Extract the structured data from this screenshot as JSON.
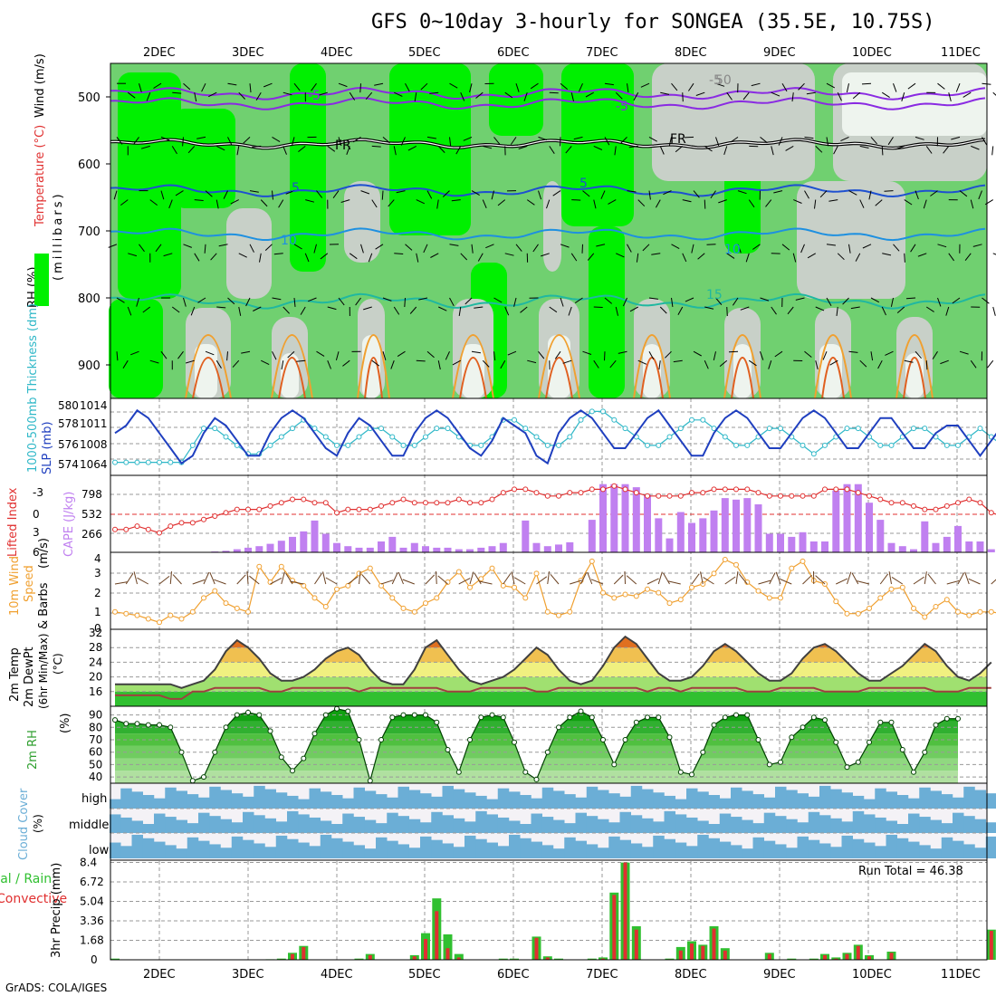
{
  "title": "GFS 0~10day 3-hourly for SONGEA (35.5E, 10.75S)",
  "footer": "GrADS: COLA/IGES",
  "dates": [
    "2DEC",
    "3DEC",
    "4DEC",
    "5DEC",
    "6DEC",
    "7DEC",
    "8DEC",
    "9DEC",
    "10DEC",
    "11DEC"
  ],
  "colors": {
    "rh_green": "#00f000",
    "rh_mid": "#70d070",
    "rh_gray": "#c8d0c8",
    "cloud": "#6baed6",
    "slp": "#1f3fbf",
    "thick": "#30b8c8",
    "li": "#e03030",
    "cape": "#c080f0",
    "wind": "#f0a030",
    "precip_total": "#30c030",
    "precip_conv": "#e03030"
  },
  "panels": {
    "upper": {
      "ylabels": [
        "Wind (m/s)",
        "Temperature (°C)",
        "(millibars)",
        "RH (%)"
      ],
      "yticks": [
        500,
        600,
        700,
        800,
        900
      ],
      "contour_labels": [
        "-5",
        "-5",
        "FR",
        "FR",
        "-5",
        "5",
        "5",
        "10",
        "10",
        "15",
        "50"
      ]
    },
    "slp": {
      "ylabel_left": "1000-500mb Thickness (dm)",
      "ylabel_right": "SLP (mb)",
      "ticks_left": [
        "580",
        "578",
        "576",
        "574"
      ],
      "ticks_right": [
        "1014",
        "1011",
        "1008",
        "1064"
      ]
    },
    "cape": {
      "ylabel_left": "Lifted Index",
      "ylabel_right": "CAPE (J/kg)",
      "ticks_left": [
        "-3",
        "0",
        "3",
        "6"
      ],
      "ticks_right": [
        "798",
        "532",
        "266"
      ]
    },
    "wind10m": {
      "ylabel": "10m Wind Speed & Barbs (m/s)",
      "ylabel_parts": [
        "10m Wind",
        "Speed",
        "& Barbs",
        "(m/s)"
      ],
      "ticks": [
        "4",
        "3",
        "2",
        "1",
        "0"
      ]
    },
    "temp2m": {
      "ylabel_parts": [
        "2m Temp",
        "2m DewPt",
        "(6hr Min/Max)",
        "(°C)"
      ],
      "ticks": [
        "32",
        "28",
        "24",
        "20",
        "16"
      ]
    },
    "rh2m": {
      "ylabel_parts": [
        "2m RH",
        "(%)"
      ],
      "ticks": [
        "90",
        "80",
        "70",
        "60",
        "50",
        "40"
      ]
    },
    "cloud": {
      "ylabel_parts": [
        "Cloud Cover",
        "(%)"
      ],
      "levels": [
        "high",
        "middle",
        "low"
      ]
    },
    "precip": {
      "ylabel_parts": [
        "3hr Precip (mm)"
      ],
      "legend_total": "Total / Rain",
      "legend_conv": "Convective",
      "ticks": [
        "8.4",
        "6.72",
        "5.04",
        "3.36",
        "1.68",
        "0"
      ],
      "run_total": "Run Total = 46.38"
    }
  },
  "chart_data": [
    {
      "type": "line",
      "title": "SLP and 1000-500mb thickness",
      "series": [
        {
          "name": "SLP (mb)",
          "values": [
            1011,
            1012,
            1014,
            1013,
            1011,
            1009,
            1007,
            1008,
            1011,
            1013,
            1012,
            1010,
            1008,
            1008,
            1011,
            1013,
            1014,
            1013,
            1011,
            1009,
            1008,
            1011,
            1013,
            1012,
            1010,
            1008,
            1008,
            1011,
            1013,
            1014,
            1013,
            1011,
            1009,
            1008,
            1010,
            1013,
            1012,
            1011,
            1008,
            1007,
            1011,
            1013,
            1014,
            1013,
            1011,
            1009,
            1009,
            1011,
            1013,
            1014,
            1012,
            1010,
            1008,
            1008,
            1011,
            1013,
            1014,
            1013,
            1011,
            1009,
            1009,
            1011,
            1013,
            1014,
            1013,
            1011,
            1009,
            1009,
            1011,
            1013,
            1013,
            1011,
            1009,
            1009,
            1011,
            1012,
            1012,
            1010,
            1008,
            1010,
            1012
          ]
        },
        {
          "name": "Thickness (dm)",
          "values": [
            574,
            574,
            574,
            574,
            574,
            574,
            574,
            576,
            578,
            578,
            577,
            576,
            575,
            575,
            576,
            577,
            578,
            579,
            578,
            577,
            576,
            576,
            577,
            578,
            578,
            577,
            576,
            576,
            577,
            578,
            578,
            577,
            576,
            576,
            577,
            579,
            579,
            578,
            577,
            576,
            576,
            577,
            579,
            580,
            580,
            579,
            578,
            577,
            576,
            576,
            577,
            578,
            579,
            579,
            578,
            577,
            576,
            576,
            577,
            578,
            578,
            577,
            576,
            575,
            576,
            577,
            578,
            578,
            577,
            576,
            576,
            577,
            578,
            578,
            577,
            576,
            576,
            577,
            578,
            577,
            576
          ]
        }
      ]
    },
    {
      "type": "bar",
      "title": "CAPE and Lifted Index",
      "series": [
        {
          "name": "CAPE (J/kg)",
          "values": [
            0,
            0,
            0,
            0,
            0,
            0,
            0,
            0,
            0,
            10,
            20,
            40,
            60,
            80,
            110,
            150,
            200,
            270,
            410,
            240,
            120,
            80,
            60,
            60,
            140,
            200,
            60,
            120,
            80,
            60,
            60,
            40,
            40,
            60,
            80,
            120,
            0,
            410,
            120,
            80,
            100,
            130,
            0,
            420,
            880,
            880,
            880,
            840,
            740,
            440,
            180,
            520,
            380,
            440,
            540,
            700,
            680,
            700,
            620,
            240,
            240,
            200,
            260,
            140,
            140,
            800,
            880,
            880,
            640,
            420,
            120,
            80,
            40,
            400,
            120,
            200,
            340,
            140,
            140,
            40,
            0
          ]
        },
        {
          "name": "Lifted Index",
          "values": [
            3,
            3,
            2.5,
            3,
            3.5,
            2.5,
            2,
            2,
            1.5,
            1,
            0.5,
            0,
            0,
            0,
            -0.5,
            -1,
            -1.5,
            -1.5,
            -1,
            -1,
            0.5,
            0,
            0,
            0,
            -0.5,
            -1,
            -1.5,
            -1,
            -1,
            -1,
            -1,
            -1.5,
            -1,
            -1,
            -1.5,
            -2.5,
            -3,
            -3,
            -2.5,
            -2,
            -2,
            -2.5,
            -2.5,
            -3,
            -3,
            -3.5,
            -3,
            -2.5,
            -2,
            -2,
            -2,
            -2,
            -2.5,
            -2.5,
            -3,
            -3,
            -3,
            -3,
            -2.5,
            -2,
            -2,
            -2,
            -2,
            -2,
            -3,
            -3,
            -3,
            -2.5,
            -2,
            -1.5,
            -1,
            -1,
            -0.5,
            0,
            0,
            -0.5,
            -1,
            -1.5,
            -1,
            0.5,
            1,
            -1.5
          ]
        }
      ]
    },
    {
      "type": "line",
      "title": "10m Wind Speed",
      "series": [
        {
          "name": "Speed (m/s)",
          "values": [
            1,
            0.9,
            0.8,
            0.6,
            0.4,
            0.8,
            0.6,
            1,
            1.8,
            2.2,
            1.5,
            1.2,
            1,
            3.6,
            2.7,
            3.6,
            2.8,
            2.5,
            1.8,
            1.3,
            2.3,
            2.5,
            3.2,
            3.5,
            2.5,
            1.8,
            1.2,
            1,
            1.5,
            1.8,
            2.7,
            3.3,
            2.4,
            2.9,
            3.5,
            2.5,
            2.4,
            1.8,
            3.2,
            1,
            0.8,
            1,
            2.8,
            3.9,
            2.1,
            1.8,
            2,
            1.9,
            2.3,
            2.1,
            1.5,
            1.7,
            2.4,
            2.6,
            3.2,
            4,
            3.7,
            2.7,
            2.2,
            1.8,
            1.8,
            3.5,
            3.9,
            2.8,
            2.6,
            1.6,
            0.9,
            0.9,
            1.2,
            1.8,
            2.3,
            2.4,
            1.2,
            0.7,
            1.3,
            1.7,
            1,
            0.8,
            1,
            1,
            0.9
          ]
        }
      ]
    },
    {
      "type": "area",
      "title": "2m Temperature and Dew Point",
      "series": [
        {
          "name": "2m Temp (°C)",
          "values": [
            18,
            18,
            18,
            18,
            18,
            18,
            17,
            18,
            19,
            22,
            27,
            30,
            28,
            25,
            21,
            19,
            19,
            20,
            22,
            25,
            27,
            28,
            26,
            22,
            19,
            18,
            18,
            22,
            28,
            30,
            26,
            22,
            19,
            18,
            19,
            20,
            22,
            25,
            28,
            26,
            22,
            19,
            18,
            19,
            23,
            28,
            31,
            29,
            25,
            21,
            19,
            19,
            20,
            23,
            27,
            29,
            27,
            24,
            21,
            19,
            19,
            21,
            25,
            28,
            29,
            27,
            24,
            21,
            19,
            19,
            21,
            23,
            26,
            29,
            27,
            23,
            20,
            19,
            21,
            24,
            28,
            30,
            28,
            25,
            21,
            19,
            19,
            19,
            18,
            25
          ]
        },
        {
          "name": "2m DewPt (°C)",
          "values": [
            15,
            15,
            15,
            15,
            15,
            14,
            14,
            16,
            16,
            17,
            17,
            17,
            17,
            17,
            16,
            16,
            17,
            17,
            17,
            17,
            17,
            17,
            16,
            17,
            17,
            17,
            17,
            17,
            17,
            17,
            16,
            16,
            16,
            17,
            17,
            17,
            17,
            17,
            16,
            16,
            17,
            17,
            17,
            17,
            17,
            17,
            17,
            17,
            16,
            17,
            17,
            16,
            17,
            17,
            17,
            17,
            17,
            16,
            16,
            16,
            17,
            17,
            17,
            17,
            16,
            16,
            16,
            16,
            17,
            17,
            17,
            17,
            17,
            17,
            16,
            16,
            16,
            17,
            17,
            17,
            16,
            15,
            15,
            15,
            15,
            15
          ]
        }
      ]
    },
    {
      "type": "area",
      "title": "2m RH",
      "series": [
        {
          "name": "2m RH (%)",
          "values": [
            86,
            83,
            83,
            82,
            82,
            80,
            60,
            37,
            40,
            60,
            80,
            90,
            92,
            90,
            77,
            56,
            45,
            55,
            75,
            90,
            95,
            93,
            70,
            37,
            70,
            88,
            90,
            90,
            90,
            84,
            62,
            44,
            70,
            88,
            90,
            88,
            68,
            44,
            38,
            60,
            80,
            88,
            93,
            88,
            70,
            50,
            70,
            84,
            88,
            88,
            72,
            44,
            42,
            60,
            82,
            88,
            90,
            90,
            70,
            50,
            52,
            72,
            80,
            88,
            86,
            68,
            48,
            52,
            68,
            84,
            84,
            62,
            44,
            60,
            82,
            87,
            87
          ]
        }
      ]
    },
    {
      "type": "bar",
      "title": "3hr Precip",
      "series": [
        {
          "name": "Total / Rain (mm)",
          "values": [
            0.1,
            0,
            0,
            0,
            0,
            0,
            0,
            0,
            0,
            0,
            0,
            0,
            0,
            0,
            0.05,
            0.1,
            0.6,
            1.2,
            0,
            0,
            0,
            0,
            0.1,
            0.5,
            0,
            0,
            0,
            0.4,
            2.3,
            5.3,
            2.2,
            0.5,
            0,
            0,
            0,
            0.1,
            0.1,
            0,
            2,
            0.3,
            0.1,
            0,
            0,
            0.1,
            0.2,
            5.8,
            8.4,
            2.9,
            0,
            0,
            0.1,
            1.1,
            1.6,
            1.3,
            2.9,
            1,
            0,
            0,
            0,
            0.6,
            0,
            0.1,
            0,
            0.1,
            0.5,
            0.2,
            0.6,
            1.3,
            0.4,
            0,
            0.7,
            0,
            0,
            0,
            0,
            0,
            0,
            0,
            0,
            2.6,
            0.3
          ]
        },
        {
          "name": "Convective (mm)",
          "values": [
            0,
            0,
            0,
            0,
            0,
            0,
            0,
            0,
            0,
            0,
            0,
            0,
            0,
            0,
            0,
            0.05,
            0.5,
            1.1,
            0,
            0,
            0,
            0,
            0.05,
            0.4,
            0,
            0,
            0,
            0.3,
            1.8,
            4.2,
            1,
            0.2,
            0,
            0,
            0,
            0.05,
            0.05,
            0,
            1.9,
            0.2,
            0,
            0,
            0,
            0.05,
            0.1,
            5.6,
            8.4,
            2.6,
            0,
            0,
            0.05,
            0.8,
            1.4,
            1.2,
            2.7,
            0.8,
            0,
            0,
            0,
            0.5,
            0,
            0.05,
            0,
            0.05,
            0.4,
            0.1,
            0.5,
            1.2,
            0.3,
            0,
            0.6,
            0,
            0,
            0,
            0,
            0,
            0,
            0,
            0,
            2.5,
            0.2
          ]
        }
      ]
    }
  ]
}
